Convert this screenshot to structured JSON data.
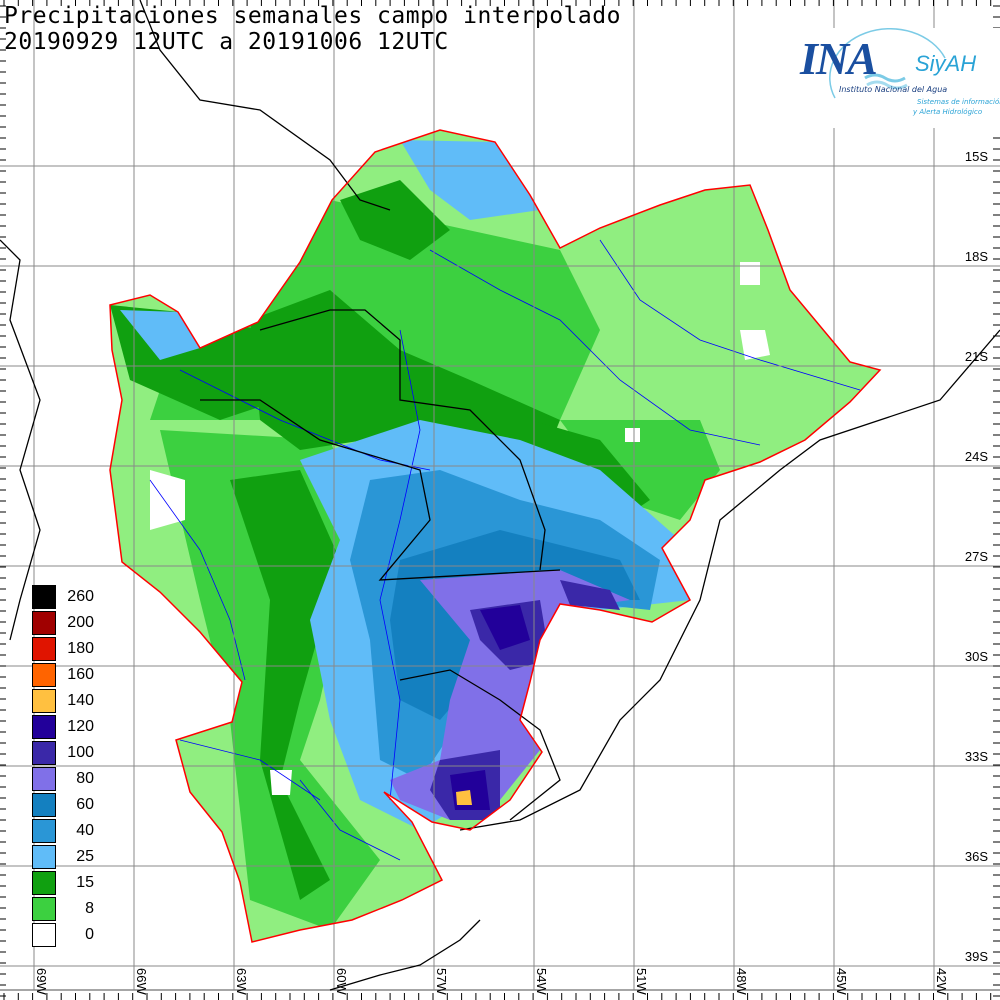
{
  "header": {
    "title": "Precipitaciones semanales campo interpolado",
    "subtitle": "20190929 12UTC a 20191006 12UTC"
  },
  "logo": {
    "acronym": "INA",
    "system": "SiyAH",
    "institute": "Instituto Nacional del Agua",
    "system_line1": "Sistemas de información",
    "system_line2": "y Alerta Hidrológico"
  },
  "legend": [
    {
      "label": "260",
      "color": "#000000"
    },
    {
      "label": "200",
      "color": "#a00000"
    },
    {
      "label": "180",
      "color": "#e01400"
    },
    {
      "label": "160",
      "color": "#ff6400"
    },
    {
      "label": "140",
      "color": "#ffc040"
    },
    {
      "label": "120",
      "color": "#22009a"
    },
    {
      "label": "100",
      "color": "#3a28a8"
    },
    {
      "label": "80",
      "color": "#8070e8"
    },
    {
      "label": "60",
      "color": "#1480c0"
    },
    {
      "label": "40",
      "color": "#2a96d6"
    },
    {
      "label": "25",
      "color": "#60bcf8"
    },
    {
      "label": "15",
      "color": "#10a010"
    },
    {
      "label": "8",
      "color": "#3cd040"
    },
    {
      "label": "0",
      "color": "#ffffff"
    }
  ],
  "latitudes": [
    "15S",
    "18S",
    "21S",
    "24S",
    "27S",
    "30S",
    "33S",
    "36S",
    "39S"
  ],
  "longitudes": [
    "69W",
    "66W",
    "63W",
    "60W",
    "57W",
    "54W",
    "51W",
    "48W",
    "45W",
    "42W"
  ],
  "colors": {
    "light_green": "#90ee80",
    "border": "#ff0000",
    "river": "#0000ff",
    "grid": "#888888"
  }
}
